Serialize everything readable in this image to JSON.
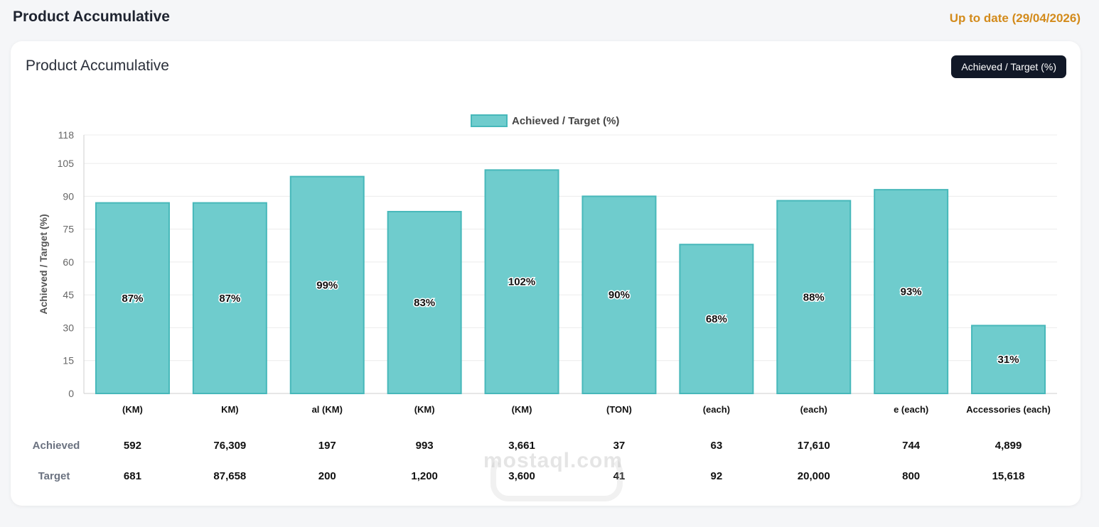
{
  "header": {
    "title": "Product Accumulative",
    "status": "Up to date (29/04/2026)"
  },
  "card": {
    "title": "Product Accumulative",
    "metric_button": "Achieved / Target (%)"
  },
  "chart_data": {
    "type": "bar",
    "legend": {
      "label": "Achieved / Target (%)",
      "position": "top-center"
    },
    "ylabel": "Achieved / Target (%)",
    "ylim": [
      0,
      118
    ],
    "yticks": [
      0,
      15,
      30,
      45,
      60,
      75,
      90,
      105,
      118
    ],
    "grid": true,
    "categories": [
      "(KM)",
      "KM)",
      "al (KM)",
      "(KM)",
      "(KM)",
      "(TON)",
      "(each)",
      "(each)",
      "e (each)",
      "Accessories (each)"
    ],
    "values": [
      87,
      87,
      99,
      83,
      102,
      90,
      68,
      88,
      93,
      31
    ],
    "data_labels": [
      "87%",
      "87%",
      "99%",
      "83%",
      "102%",
      "90%",
      "68%",
      "88%",
      "93%",
      "31%"
    ],
    "colors": {
      "fill": "#6fcccd",
      "stroke": "#47b8ba"
    }
  },
  "table": {
    "achieved_label": "Achieved",
    "target_label": "Target",
    "achieved": [
      "592",
      "76,309",
      "197",
      "993",
      "3,661",
      "37",
      "63",
      "17,610",
      "744",
      "4,899"
    ],
    "target": [
      "681",
      "87,658",
      "200",
      "1,200",
      "3,600",
      "41",
      "92",
      "20,000",
      "800",
      "15,618"
    ]
  },
  "watermark": "mostaql.com"
}
